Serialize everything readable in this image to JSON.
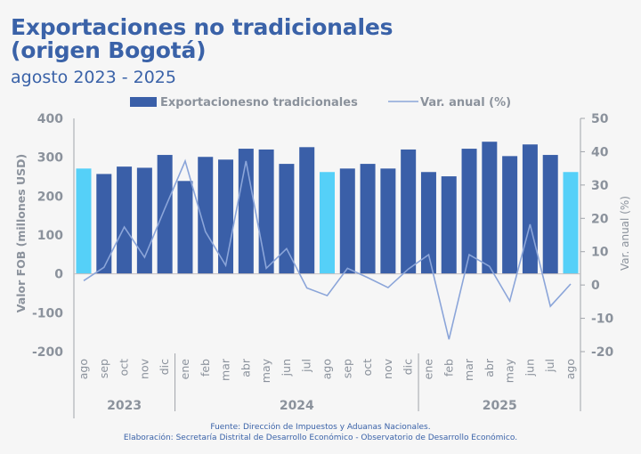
{
  "header": {
    "title_line1": "Exportaciones no tradicionales",
    "title_line2": "(origen Bogotá)",
    "subtitle": "agosto 2023 - 2025"
  },
  "footer": {
    "source": "Fuente: Dirección de Impuestos y Aduanas Nacionales.",
    "elaboration": "Elaboración: Secretaría Distrital de Desarrollo Económico - Observatorio de Desarrollo Económico."
  },
  "colors": {
    "bar": "#3a5fa8",
    "bar_highlight": "#55d0f8",
    "line": "#8ba5d9",
    "title": "#3a62a8",
    "axis_text": "#8b929c"
  },
  "chart_data": {
    "type": "bar",
    "title": "Exportaciones no tradicionales (origen Bogotá)",
    "subtitle": "agosto 2023 - 2025",
    "categories": [
      "ago",
      "sep",
      "oct",
      "nov",
      "dic",
      "ene",
      "feb",
      "mar",
      "abr",
      "may",
      "jun",
      "jul",
      "ago",
      "sep",
      "oct",
      "nov",
      "dic",
      "ene",
      "feb",
      "mar",
      "abr",
      "may",
      "jun",
      "jul",
      "ago"
    ],
    "year_groups": [
      {
        "label": "2023",
        "count": 5
      },
      {
        "label": "2024",
        "count": 12
      },
      {
        "label": "2025",
        "count": 8
      }
    ],
    "highlighted_indices": [
      0,
      12,
      24
    ],
    "series": [
      {
        "name": "Exportacionesno tradicionales",
        "type": "bar",
        "axis": "left",
        "values": [
          271,
          257,
          276,
          273,
          306,
          239,
          301,
          294,
          322,
          320,
          283,
          326,
          262,
          271,
          283,
          271,
          320,
          262,
          251,
          322,
          340,
          303,
          333,
          306,
          262
        ]
      },
      {
        "name": "Var. anual (%)",
        "type": "line",
        "axis": "right",
        "values": [
          1.3,
          5.3,
          17.4,
          8.3,
          23.0,
          37.2,
          16.0,
          5.9,
          37.2,
          5.0,
          10.9,
          -0.9,
          -3.2,
          5.0,
          2.2,
          -0.8,
          4.8,
          9.1,
          -16.3,
          9.1,
          5.6,
          -4.8,
          18.2,
          -6.4,
          0.3
        ]
      }
    ],
    "ylabel": "Valor FOB (millones USD)",
    "ylim": [
      -200,
      400
    ],
    "yticks": [
      "400",
      "300",
      "200",
      "100",
      "0",
      "-100",
      "-200"
    ],
    "yticks_values": [
      400,
      300,
      200,
      100,
      0,
      -100,
      -200
    ],
    "y2label": "Var. anual (%)",
    "y2lim": [
      -20,
      50
    ],
    "y2ticks": [
      "50",
      "40",
      "30",
      "20",
      "10",
      "0",
      "-10",
      "-20"
    ],
    "y2ticks_values": [
      50,
      40,
      30,
      20,
      10,
      0,
      -10,
      -20
    ],
    "legend": [
      "Exportacionesno tradicionales",
      "Var. anual (%)"
    ],
    "legend_position": "top-center",
    "grid": false
  }
}
